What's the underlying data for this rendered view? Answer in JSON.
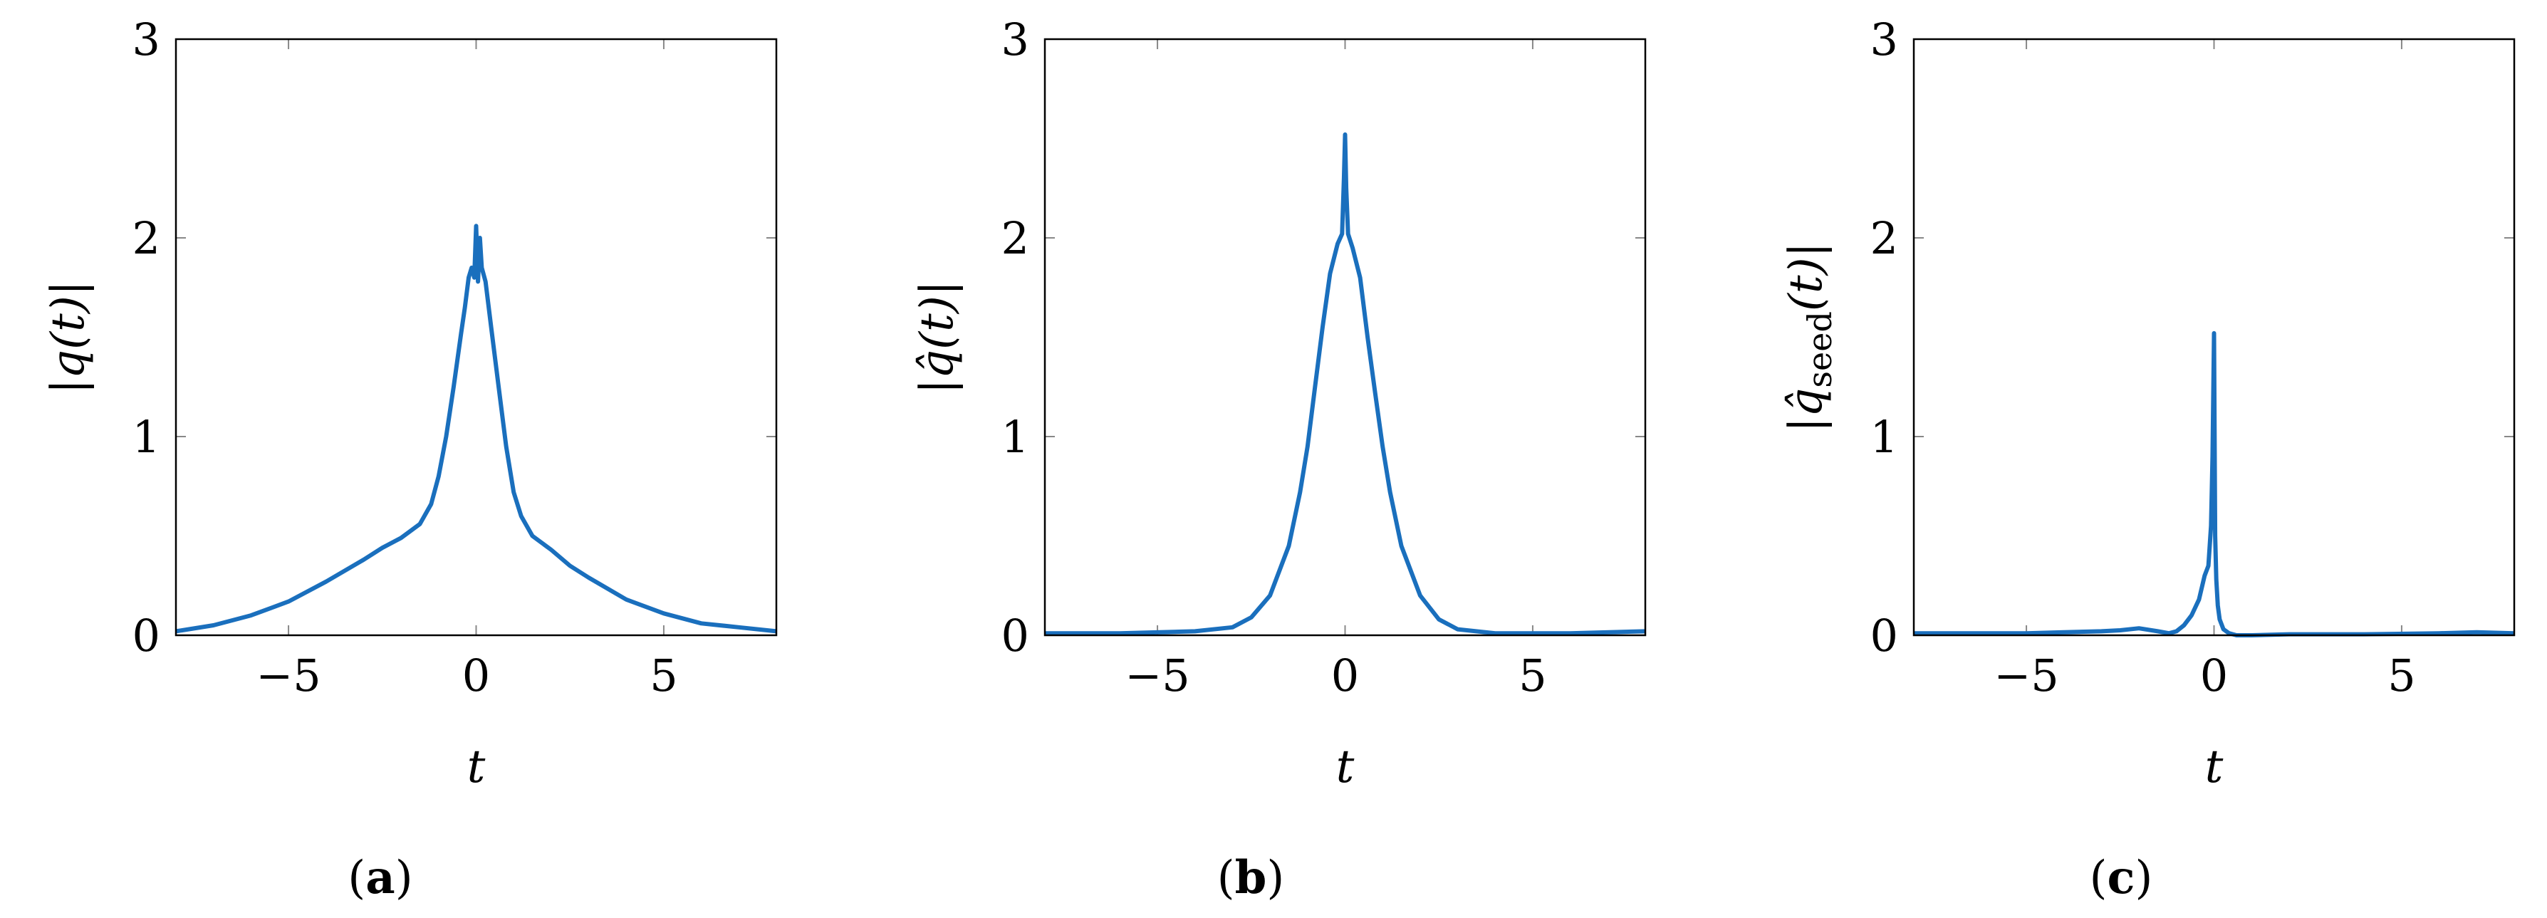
{
  "chart_data": [
    {
      "type": "line",
      "panel": "a",
      "caption_letter": "a",
      "ylabel_main": "|q(t)|",
      "ylabel_sub": "",
      "xlabel": "t",
      "xlim": [
        -8,
        8
      ],
      "ylim": [
        0,
        3
      ],
      "xticks": [
        -5,
        0,
        5
      ],
      "xtick_labels": [
        "−5",
        "0",
        "5"
      ],
      "yticks": [
        0,
        1,
        2,
        3
      ],
      "ytick_labels": [
        "0",
        "1",
        "2",
        "3"
      ],
      "grid": "major ticks on all sides",
      "color": "#1a6fbd",
      "x": [
        -8,
        -7,
        -6,
        -5,
        -4,
        -3,
        -2.5,
        -2,
        -1.5,
        -1.2,
        -1,
        -0.8,
        -0.6,
        -0.4,
        -0.3,
        -0.2,
        -0.12,
        -0.05,
        0,
        0.05,
        0.1,
        0.15,
        0.25,
        0.4,
        0.6,
        0.8,
        1,
        1.2,
        1.5,
        2,
        2.5,
        3,
        4,
        5,
        6,
        7,
        8
      ],
      "y": [
        0.02,
        0.05,
        0.1,
        0.17,
        0.27,
        0.38,
        0.44,
        0.49,
        0.56,
        0.66,
        0.8,
        1.0,
        1.25,
        1.52,
        1.65,
        1.8,
        1.85,
        1.8,
        2.06,
        1.78,
        2.0,
        1.85,
        1.78,
        1.55,
        1.25,
        0.95,
        0.72,
        0.6,
        0.5,
        0.43,
        0.35,
        0.29,
        0.18,
        0.11,
        0.06,
        0.04,
        0.02
      ]
    },
    {
      "type": "line",
      "panel": "b",
      "caption_letter": "b",
      "ylabel_main": "|q̂(t)|",
      "ylabel_sub": "",
      "xlabel": "t",
      "xlim": [
        -8,
        8
      ],
      "ylim": [
        0,
        3
      ],
      "xticks": [
        -5,
        0,
        5
      ],
      "xtick_labels": [
        "−5",
        "0",
        "5"
      ],
      "yticks": [
        0,
        1,
        2,
        3
      ],
      "ytick_labels": [
        "0",
        "1",
        "2",
        "3"
      ],
      "grid": "major ticks on all sides",
      "color": "#1a6fbd",
      "x": [
        -8,
        -6,
        -4,
        -3,
        -2.5,
        -2,
        -1.5,
        -1.2,
        -1,
        -0.8,
        -0.6,
        -0.4,
        -0.2,
        -0.08,
        -0.03,
        0,
        0.03,
        0.08,
        0.2,
        0.4,
        0.6,
        0.8,
        1,
        1.2,
        1.5,
        2,
        2.5,
        3,
        4,
        6,
        8
      ],
      "y": [
        0.01,
        0.01,
        0.02,
        0.04,
        0.09,
        0.2,
        0.45,
        0.72,
        0.95,
        1.25,
        1.55,
        1.82,
        1.97,
        2.02,
        2.3,
        2.52,
        2.25,
        2.02,
        1.95,
        1.8,
        1.5,
        1.22,
        0.95,
        0.72,
        0.45,
        0.2,
        0.08,
        0.03,
        0.01,
        0.01,
        0.02
      ]
    },
    {
      "type": "line",
      "panel": "c",
      "caption_letter": "c",
      "ylabel_main": "|q̂",
      "ylabel_sub": "seed",
      "ylabel_tail": "(t)|",
      "xlabel": "t",
      "xlim": [
        -8,
        8
      ],
      "ylim": [
        0,
        3
      ],
      "xticks": [
        -5,
        0,
        5
      ],
      "xtick_labels": [
        "−5",
        "0",
        "5"
      ],
      "yticks": [
        0,
        1,
        2,
        3
      ],
      "ytick_labels": [
        "0",
        "1",
        "2",
        "3"
      ],
      "grid": "major ticks on all sides",
      "color": "#1a6fbd",
      "x": [
        -8,
        -6,
        -5,
        -4,
        -3,
        -2.5,
        -2,
        -1.5,
        -1.2,
        -1,
        -0.8,
        -0.6,
        -0.4,
        -0.25,
        -0.15,
        -0.08,
        -0.04,
        0,
        0.03,
        0.06,
        0.1,
        0.15,
        0.25,
        0.4,
        0.6,
        1,
        2,
        4,
        6,
        7,
        8
      ],
      "y": [
        0.01,
        0.01,
        0.01,
        0.015,
        0.02,
        0.025,
        0.035,
        0.02,
        0.01,
        0.02,
        0.05,
        0.1,
        0.18,
        0.3,
        0.35,
        0.55,
        0.9,
        1.52,
        0.5,
        0.28,
        0.15,
        0.08,
        0.03,
        0.01,
        0.0,
        0.0,
        0.005,
        0.005,
        0.01,
        0.015,
        0.01
      ]
    }
  ]
}
